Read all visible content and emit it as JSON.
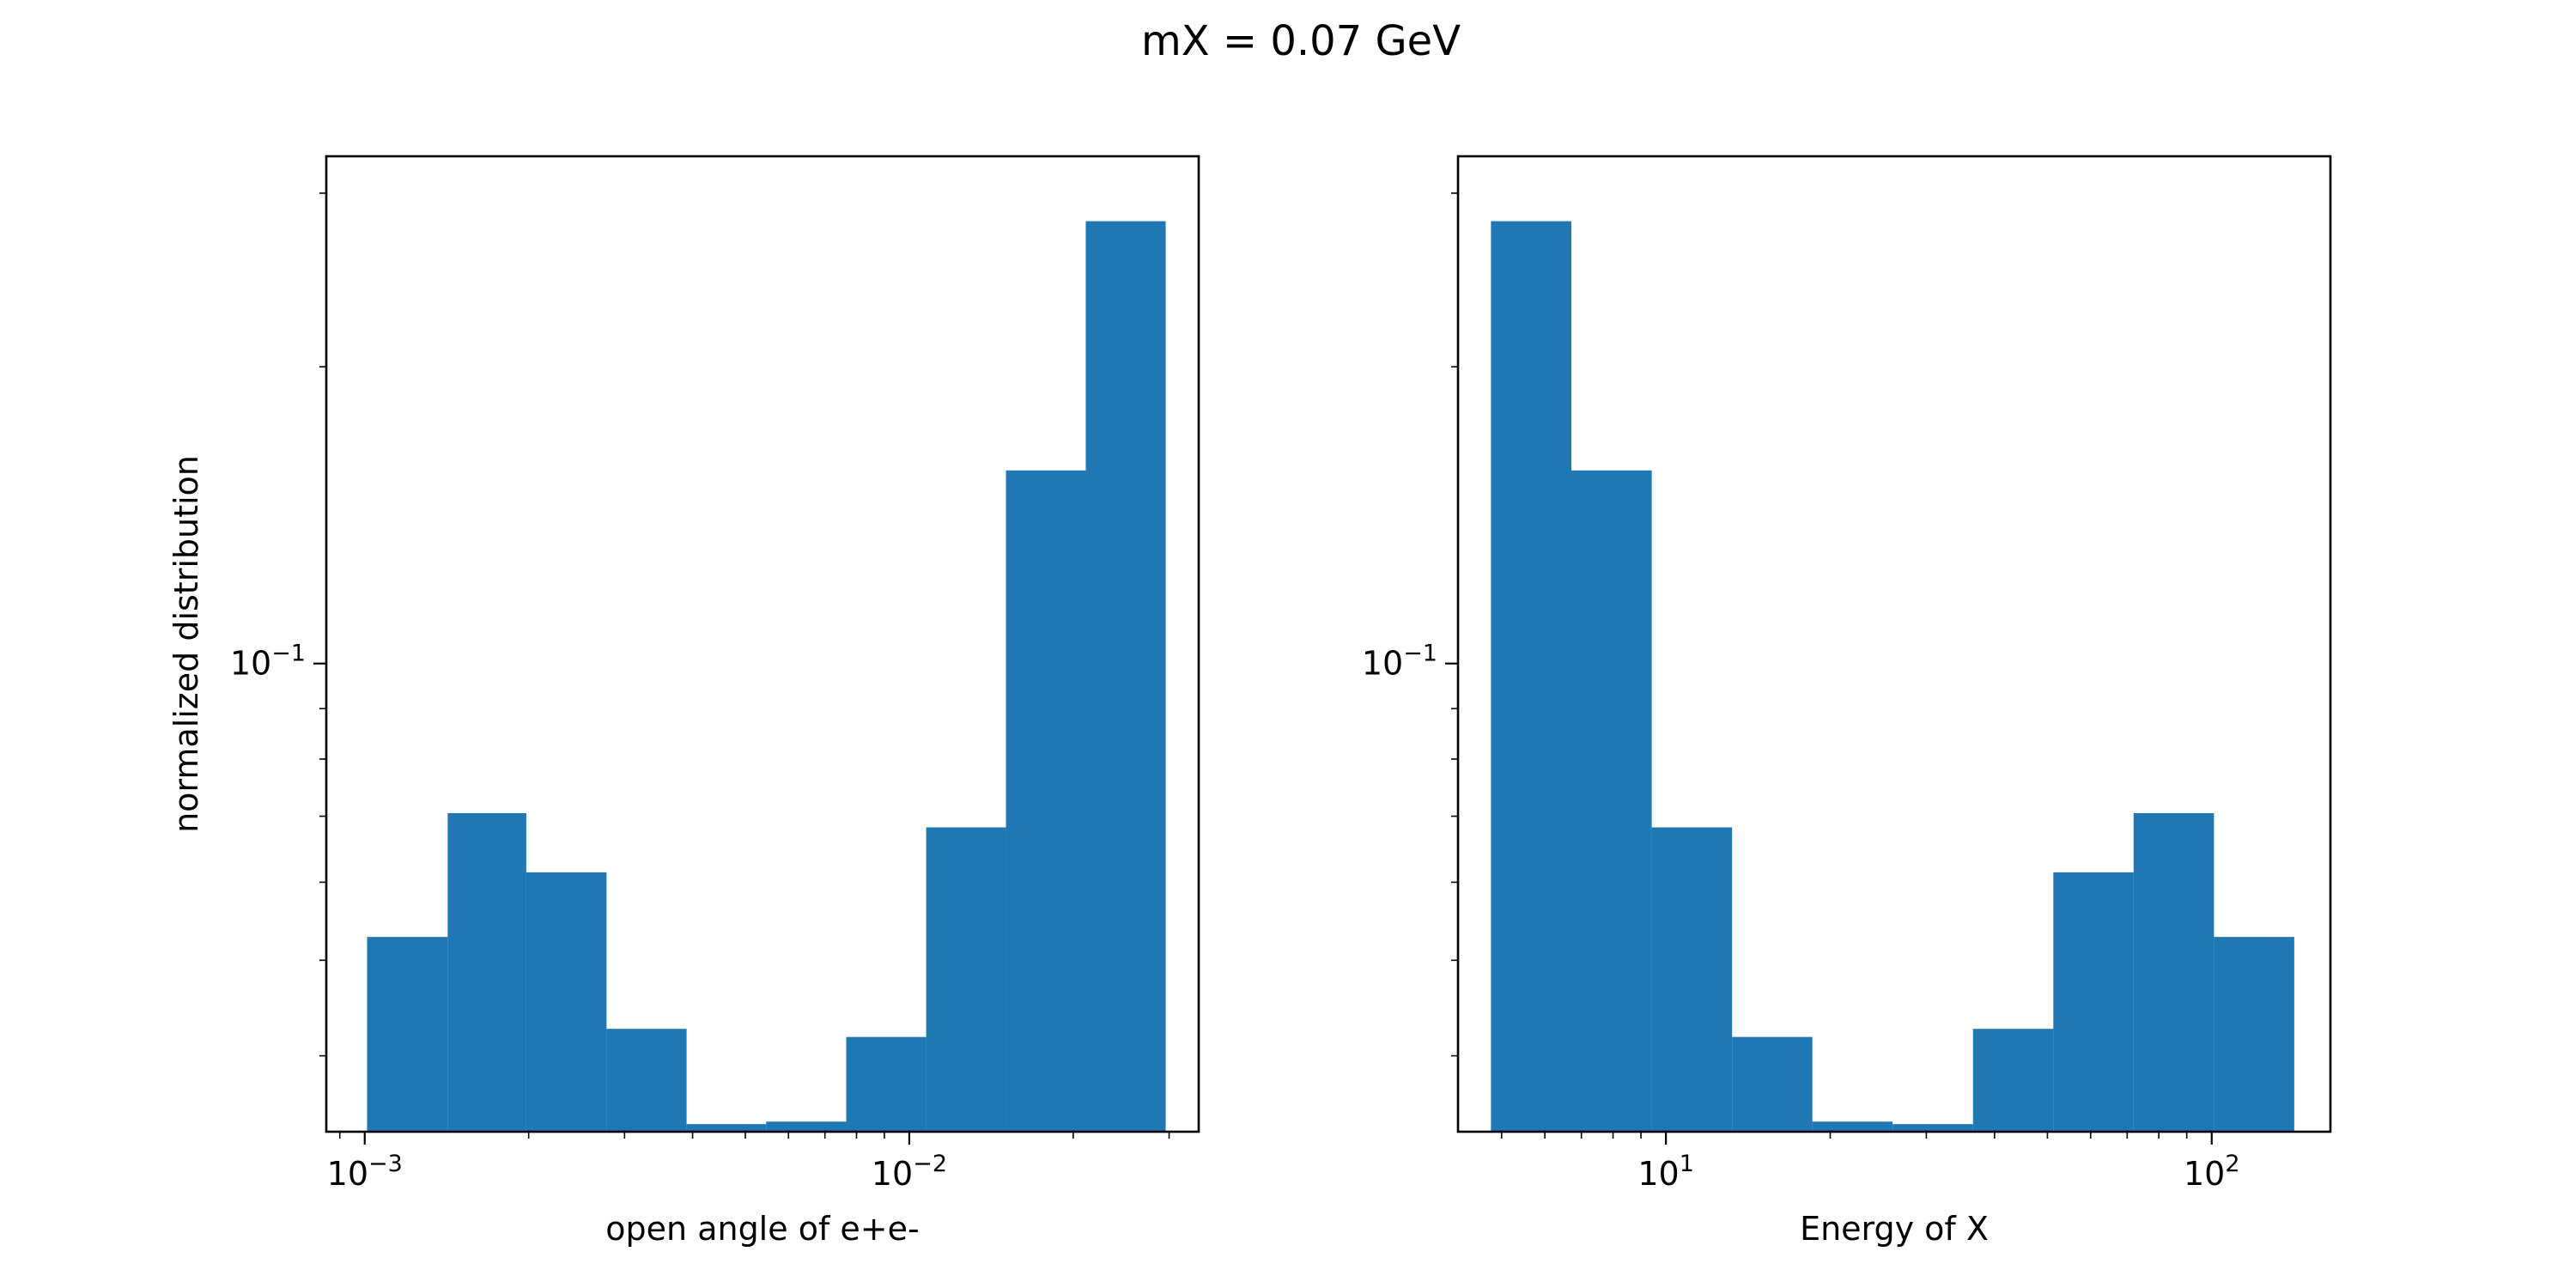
{
  "figure": {
    "title": "mX = 0.07 GeV"
  },
  "chart_data": [
    {
      "type": "bar",
      "histogram": true,
      "xscale": "log",
      "yscale": "log",
      "xlabel": "open angle of e+e-",
      "ylabel": "normalized distribution",
      "xlim": [
        0.00085,
        0.034
      ],
      "ylim": [
        0.0335,
        0.327
      ],
      "color": "#1f77b4",
      "x_ticks": [
        {
          "value": 0.001,
          "base": "10",
          "exp": "−3"
        },
        {
          "value": 0.01,
          "base": "10",
          "exp": "−2"
        }
      ],
      "y_ticks": [
        {
          "value": 0.1,
          "base": "10",
          "exp": "−1"
        }
      ],
      "bin_edges": [
        0.00101,
        0.00142,
        0.00198,
        0.00278,
        0.0039,
        0.00546,
        0.00766,
        0.01074,
        0.01505,
        0.02109,
        0.02957
      ],
      "values": [
        0.0528,
        0.0705,
        0.0614,
        0.0426,
        0.0341,
        0.0343,
        0.0418,
        0.0682,
        0.157,
        0.281
      ]
    },
    {
      "type": "bar",
      "histogram": true,
      "xscale": "log",
      "yscale": "log",
      "xlabel": "Energy of X",
      "ylabel": "",
      "xlim": [
        4.16,
        165
      ],
      "ylim": [
        0.0335,
        0.327
      ],
      "color": "#1f77b4",
      "x_ticks": [
        {
          "value": 10,
          "base": "10",
          "exp": "1"
        },
        {
          "value": 100,
          "base": "10",
          "exp": "2"
        }
      ],
      "y_ticks": [
        {
          "value": 0.1,
          "base": "10",
          "exp": "−1"
        }
      ],
      "bin_edges": [
        4.78,
        6.71,
        9.42,
        13.22,
        18.55,
        26.03,
        36.53,
        51.26,
        71.93,
        100.94,
        141.64
      ],
      "values": [
        0.281,
        0.157,
        0.0682,
        0.0418,
        0.0343,
        0.0341,
        0.0426,
        0.0614,
        0.0705,
        0.0528
      ]
    }
  ]
}
